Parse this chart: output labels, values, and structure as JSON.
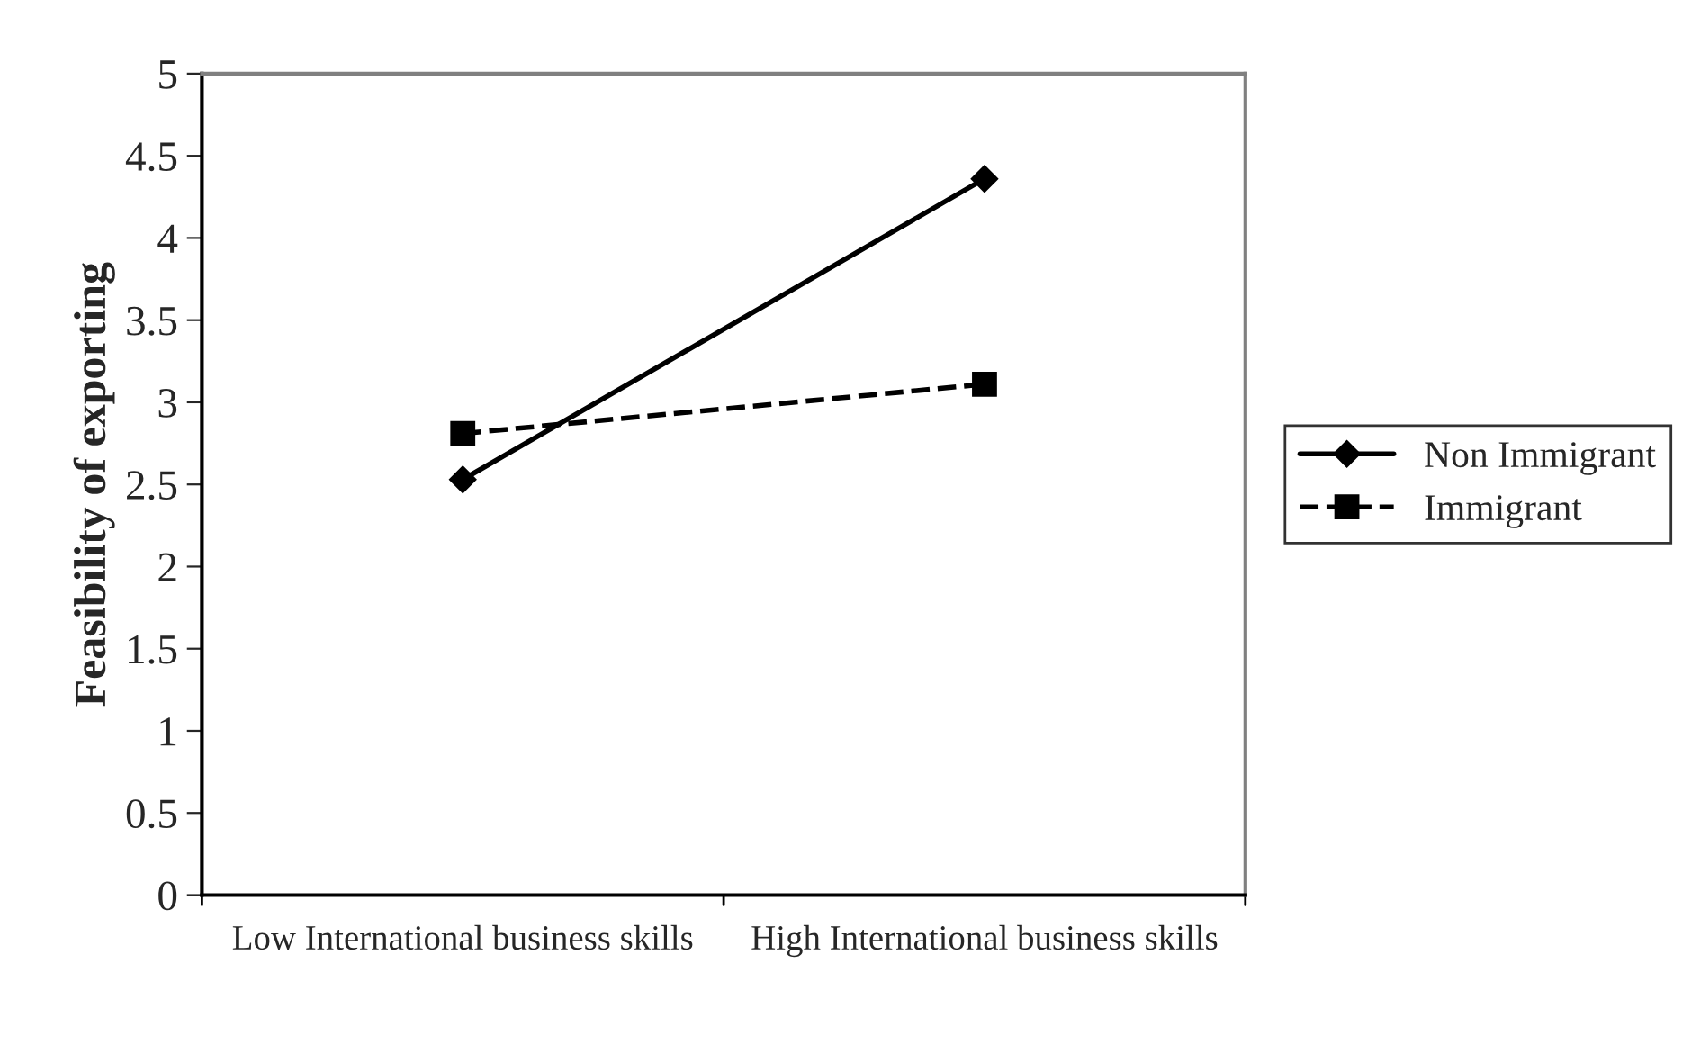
{
  "chart_data": {
    "type": "line",
    "ylabel": "Feasibility of exporting",
    "categories": [
      "Low International business skills",
      "High International business skills"
    ],
    "series": [
      {
        "name": "Non Immigrant",
        "color": "#000000",
        "values": [
          2.53,
          4.36
        ],
        "marker": "diamond",
        "line_style": "solid"
      },
      {
        "name": "Immigrant",
        "color": "#000000",
        "values": [
          2.81,
          3.11
        ],
        "marker": "square",
        "line_style": "dashed"
      }
    ],
    "ylim": [
      0,
      5
    ],
    "yticks": [
      0,
      0.5,
      1,
      1.5,
      2,
      2.5,
      3,
      3.5,
      4,
      4.5,
      5
    ],
    "grid": false,
    "legend": "right"
  }
}
